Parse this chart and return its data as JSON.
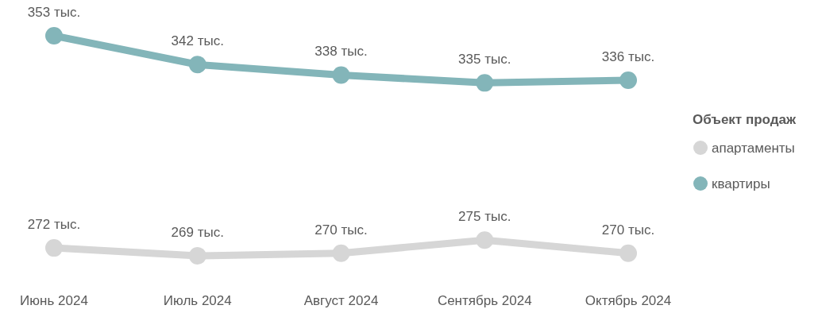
{
  "chart_data": {
    "type": "line",
    "categories": [
      "Июнь 2024",
      "Июль 2024",
      "Август 2024",
      "Сентябрь 2024",
      "Октябрь 2024"
    ],
    "series": [
      {
        "name": "апартаменты",
        "color": "#d6d6d6",
        "values": [
          272,
          269,
          270,
          275,
          270
        ],
        "value_labels": [
          "272 тыс.",
          "269 тыс.",
          "270 тыс.",
          "275 тыс.",
          "270 тыс."
        ]
      },
      {
        "name": "квартиры",
        "color": "#83b5b9",
        "values": [
          353,
          342,
          338,
          335,
          336
        ],
        "value_labels": [
          "353 тыс.",
          "342 тыс.",
          "338 тыс.",
          "335 тыс.",
          "336 тыс."
        ]
      }
    ],
    "legend_title": "Объект продаж",
    "legend": "right",
    "marker": "circle",
    "line_style": "solid"
  }
}
